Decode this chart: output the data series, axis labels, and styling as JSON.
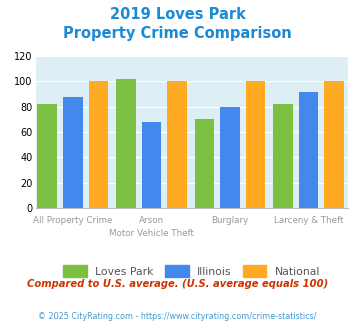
{
  "title_line1": "2019 Loves Park",
  "title_line2": "Property Crime Comparison",
  "loves_park": [
    82,
    102,
    70,
    82
  ],
  "illinois": [
    88,
    68,
    80,
    92
  ],
  "national": [
    100,
    100,
    100,
    100
  ],
  "bar_colors": {
    "loves_park": "#7bc043",
    "illinois": "#4488ee",
    "national": "#ffaa22"
  },
  "ylim": [
    0,
    120
  ],
  "yticks": [
    0,
    20,
    40,
    60,
    80,
    100,
    120
  ],
  "legend_labels": [
    "Loves Park",
    "Illinois",
    "National"
  ],
  "row1_labels": [
    "All Property Crime",
    "Arson",
    "Burglary",
    "Larceny & Theft"
  ],
  "row2_labels": [
    "",
    "Motor Vehicle Theft",
    "",
    ""
  ],
  "footnote1": "Compared to U.S. average. (U.S. average equals 100)",
  "footnote2": "© 2025 CityRating.com - https://www.cityrating.com/crime-statistics/",
  "title_color": "#1a8ad4",
  "footnote1_color": "#cc3300",
  "footnote2_color": "#4499cc",
  "plot_bg": "#ddeef5"
}
